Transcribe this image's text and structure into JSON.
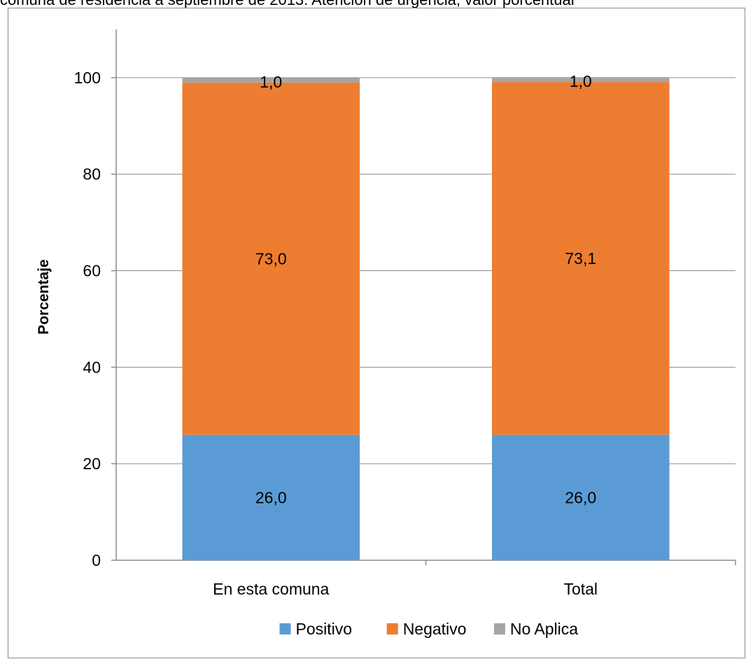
{
  "caption": "comuna de residencia a septiembre de 2013. Atención de urgencia, valor porcentual",
  "chart_data": {
    "type": "bar",
    "stacked": true,
    "categories": [
      "En esta comuna",
      "Total"
    ],
    "series": [
      {
        "name": "Positivo",
        "values": [
          26.0,
          26.0
        ],
        "labels": [
          "26,0",
          "26,0"
        ],
        "color": "#5b9bd5"
      },
      {
        "name": "Negativo",
        "values": [
          73.0,
          73.1
        ],
        "labels": [
          "73,0",
          "73,1"
        ],
        "color": "#ed7d31"
      },
      {
        "name": "No Aplica",
        "values": [
          1.0,
          1.0
        ],
        "labels": [
          "1,0",
          "1,0"
        ],
        "color": "#a5a5a5"
      }
    ],
    "ylabel": "Porcentaje",
    "xlabel": "",
    "ylim": [
      0,
      110
    ],
    "yticks": [
      0,
      20,
      40,
      60,
      80,
      100
    ],
    "grid": true,
    "legend": "bottom"
  }
}
